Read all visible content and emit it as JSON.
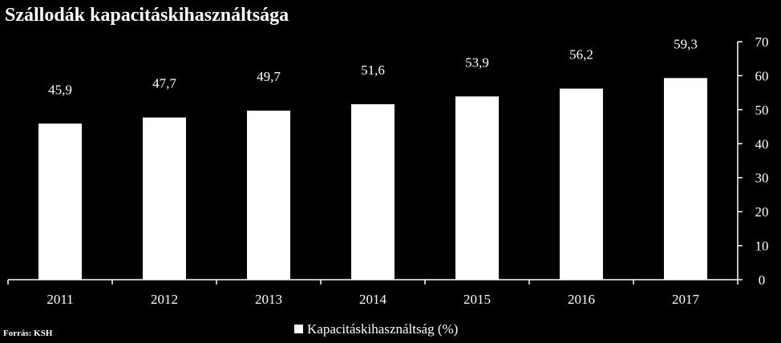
{
  "chart_data": {
    "type": "bar",
    "title": "Szállodák kapacitáskihasználtsága",
    "categories": [
      "2011",
      "2012",
      "2013",
      "2014",
      "2015",
      "2016",
      "2017"
    ],
    "series": [
      {
        "name": "Kapacitáskihasználtság (%)",
        "values": [
          45.9,
          47.7,
          49.7,
          51.6,
          53.9,
          56.2,
          59.3
        ],
        "data_labels": [
          "45,9",
          "47,7",
          "49,7",
          "51,6",
          "53,9",
          "56,2",
          "59,3"
        ],
        "color": "#ffffff"
      }
    ],
    "ylim": [
      0,
      70
    ],
    "yticks": [
      "0",
      "10",
      "20",
      "30",
      "40",
      "50",
      "60",
      "70"
    ],
    "y_axis_side": "right",
    "grid": false,
    "legend_position": "bottom",
    "xlabel": "",
    "ylabel": ""
  },
  "source": "Forrás: KSH",
  "colors": {
    "background": "#000000",
    "foreground": "#ffffff"
  }
}
